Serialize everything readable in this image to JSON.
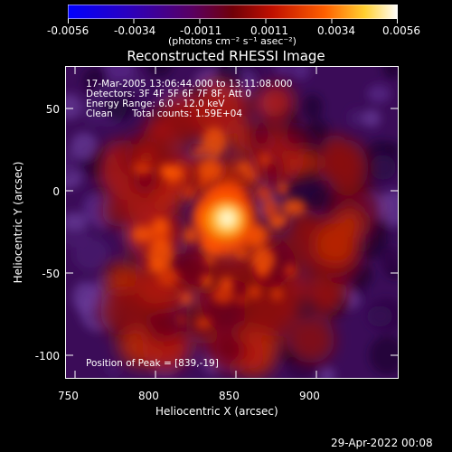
{
  "colorbar": {
    "tick_labels": [
      "-0.0056",
      "-0.0034",
      "-0.0011",
      "0.0011",
      "0.0034",
      "0.0056"
    ],
    "units": "(photons cm⁻² s⁻¹ asec⁻²)",
    "colors": [
      "#0000ff",
      "#2a00c0",
      "#6a0068",
      "#880000",
      "#dd2000",
      "#ff8c00",
      "#ffe040",
      "#ffffff"
    ]
  },
  "title": "Reconstructed RHESSI Image",
  "overlay": {
    "time_range": "17-Mar-2005 13:06:44.000 to 13:11:08.000",
    "detectors": "Detectors: 3F 4F 5F 6F 7F 8F, Att 0",
    "energy_range": "Energy Range: 6.0 - 12.0 keV",
    "clean_label": "Clean",
    "total_counts": "Total counts: 1.59E+04",
    "peak_position": "Position of Peak = [839,-19]"
  },
  "axes": {
    "x_label": "Heliocentric X (arcsec)",
    "y_label": "Heliocentric Y (arcsec)",
    "x_ticks": [
      "750",
      "800",
      "850",
      "900"
    ],
    "y_ticks": [
      "50",
      "0",
      "-50",
      "-100"
    ]
  },
  "image": {
    "x_range": [
      747,
      940
    ],
    "y_range": [
      -117,
      77
    ],
    "peak": [
      839,
      -19
    ]
  },
  "footer_date": "29-Apr-2022 00:08"
}
